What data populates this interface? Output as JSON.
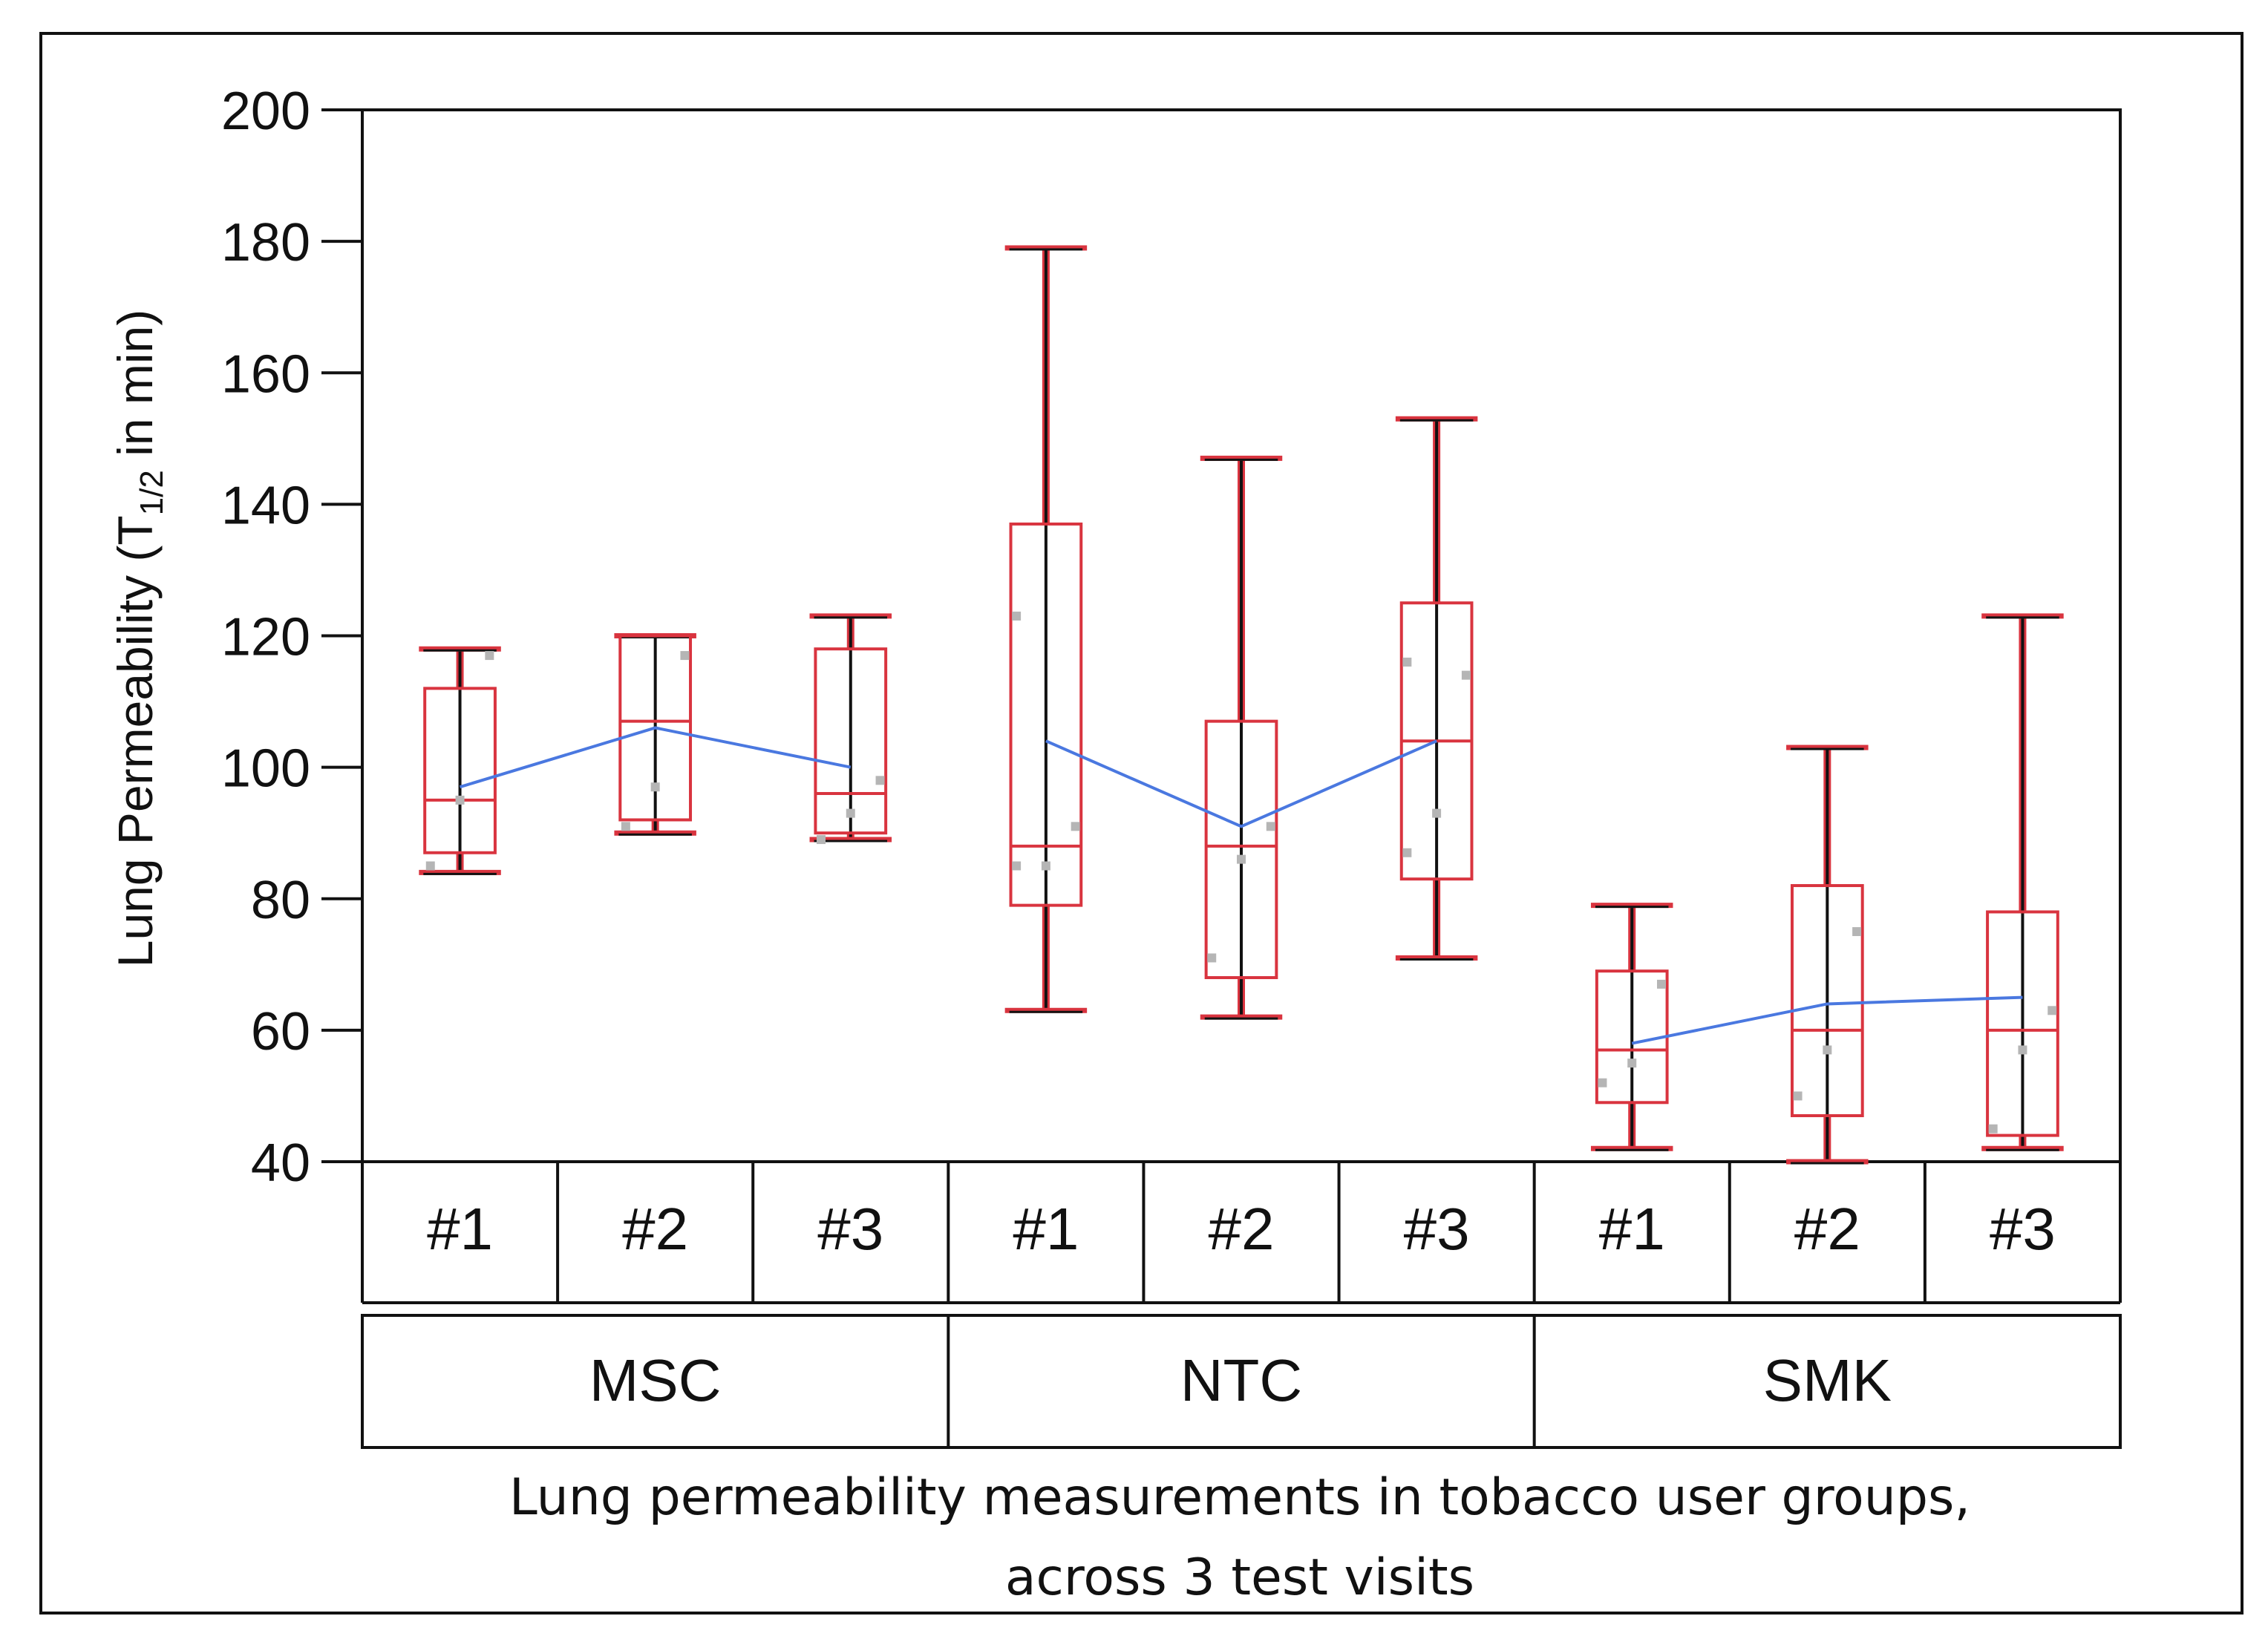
{
  "chart_data": {
    "type": "box",
    "ylabel_main": "Lung Permeability (T",
    "ylabel_subscript": "1/2",
    "ylabel_tail": " in min)",
    "caption_line1": "Lung permeability measurements in tobacco user groups,",
    "caption_line2": "across 3 test visits",
    "ylim": [
      40,
      200
    ],
    "yticks": [
      "40",
      "60",
      "80",
      "100",
      "120",
      "140",
      "160",
      "180",
      "200"
    ],
    "ytick_values": [
      40,
      60,
      80,
      100,
      120,
      140,
      160,
      180,
      200
    ],
    "groups": [
      {
        "name": "MSC",
        "visits": [
          {
            "label": "#1",
            "min": 84,
            "q1": 87,
            "median": 95,
            "q3": 112,
            "max": 118,
            "mean": 97,
            "points": [
              85,
              95,
              117
            ]
          },
          {
            "label": "#2",
            "min": 90,
            "q1": 92,
            "median": 107,
            "q3": 120,
            "max": 120,
            "mean": 106,
            "points": [
              91,
              97,
              117
            ]
          },
          {
            "label": "#3",
            "min": 89,
            "q1": 90,
            "median": 96,
            "q3": 118,
            "max": 123,
            "mean": 100,
            "points": [
              89,
              93,
              98
            ]
          }
        ]
      },
      {
        "name": "NTC",
        "visits": [
          {
            "label": "#1",
            "min": 63,
            "q1": 79,
            "median": 88,
            "q3": 137,
            "max": 179,
            "mean": 104,
            "points": [
              85,
              85,
              91,
              123
            ]
          },
          {
            "label": "#2",
            "min": 62,
            "q1": 68,
            "median": 88,
            "q3": 107,
            "max": 147,
            "mean": 91,
            "points": [
              71,
              86,
              91
            ]
          },
          {
            "label": "#3",
            "min": 71,
            "q1": 83,
            "median": 104,
            "q3": 125,
            "max": 153,
            "mean": 104,
            "points": [
              87,
              93,
              114,
              116
            ]
          }
        ]
      },
      {
        "name": "SMK",
        "visits": [
          {
            "label": "#1",
            "min": 42,
            "q1": 49,
            "median": 57,
            "q3": 69,
            "max": 79,
            "mean": 58,
            "points": [
              52,
              55,
              67
            ]
          },
          {
            "label": "#2",
            "min": 40,
            "q1": 47,
            "median": 60,
            "q3": 82,
            "max": 103,
            "mean": 64,
            "points": [
              50,
              57,
              75
            ]
          },
          {
            "label": "#3",
            "min": 42,
            "q1": 44,
            "median": 60,
            "q3": 78,
            "max": 123,
            "mean": 65,
            "points": [
              45,
              57,
              63
            ]
          }
        ]
      }
    ],
    "colors": {
      "box": "#d9343f",
      "whisker_outer": "#d9343f",
      "whisker_inner": "#111111",
      "mean_line": "#4a78e0",
      "points": "#b5b5b5",
      "axis": "#111111"
    }
  }
}
